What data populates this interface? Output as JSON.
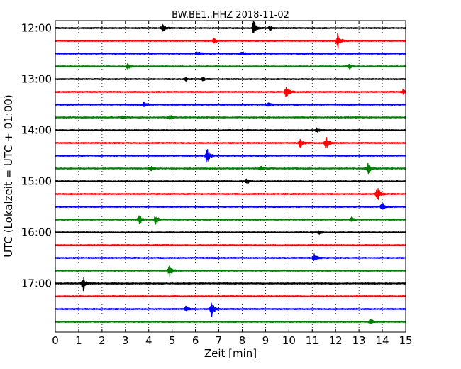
{
  "chart_data": {
    "type": "line",
    "title": "BW.BE1..HHZ 2018-11-02",
    "xlabel": "Zeit  [min]",
    "ylabel": "UTC (Lokalzeit = UTC + 01:00)",
    "xlim": [
      0,
      15
    ],
    "xticks": [
      "0",
      "1",
      "2",
      "3",
      "4",
      "5",
      "6",
      "7",
      "8",
      "9",
      "10",
      "11",
      "12",
      "13",
      "14",
      "15"
    ],
    "yticks": [
      "12:00",
      "13:00",
      "14:00",
      "15:00",
      "16:00",
      "17:00"
    ],
    "grid": "vertical dotted",
    "trace_colors": [
      "#000000",
      "#ff0000",
      "#0000ff",
      "#008000"
    ],
    "traces": [
      {
        "start": "12:00",
        "color": "#000000",
        "events": [
          {
            "t": 4.6,
            "amp": 0.55
          },
          {
            "t": 8.5,
            "amp": 1.0
          },
          {
            "t": 9.2,
            "amp": 0.3
          }
        ]
      },
      {
        "start": "12:15",
        "color": "#ff0000",
        "events": [
          {
            "t": 6.8,
            "amp": 0.3
          },
          {
            "t": 12.1,
            "amp": 1.0
          }
        ]
      },
      {
        "start": "12:30",
        "color": "#0000ff",
        "events": [
          {
            "t": 6.1,
            "amp": 0.3
          },
          {
            "t": 8.0,
            "amp": 0.25
          }
        ]
      },
      {
        "start": "12:45",
        "color": "#008000",
        "events": [
          {
            "t": 3.1,
            "amp": 0.35
          },
          {
            "t": 12.6,
            "amp": 0.3
          }
        ]
      },
      {
        "start": "13:00",
        "color": "#000000",
        "events": [
          {
            "t": 5.6,
            "amp": 0.2
          },
          {
            "t": 6.3,
            "amp": 0.25
          }
        ]
      },
      {
        "start": "13:15",
        "color": "#ff0000",
        "events": [
          {
            "t": 9.9,
            "amp": 1.0
          },
          {
            "t": 14.9,
            "amp": 0.35
          }
        ]
      },
      {
        "start": "13:30",
        "color": "#0000ff",
        "events": [
          {
            "t": 3.8,
            "amp": 0.3
          },
          {
            "t": 9.1,
            "amp": 0.25
          }
        ]
      },
      {
        "start": "13:45",
        "color": "#008000",
        "events": [
          {
            "t": 2.9,
            "amp": 0.2
          },
          {
            "t": 4.9,
            "amp": 0.4
          }
        ]
      },
      {
        "start": "14:00",
        "color": "#000000",
        "events": [
          {
            "t": 11.2,
            "amp": 0.3
          }
        ]
      },
      {
        "start": "14:15",
        "color": "#ff0000",
        "events": [
          {
            "t": 10.5,
            "amp": 0.65
          },
          {
            "t": 11.6,
            "amp": 1.0
          }
        ]
      },
      {
        "start": "14:30",
        "color": "#0000ff",
        "events": [
          {
            "t": 6.5,
            "amp": 1.0
          }
        ]
      },
      {
        "start": "14:45",
        "color": "#008000",
        "events": [
          {
            "t": 4.1,
            "amp": 0.3
          },
          {
            "t": 8.8,
            "amp": 0.3
          },
          {
            "t": 13.4,
            "amp": 0.75
          }
        ]
      },
      {
        "start": "15:00",
        "color": "#000000",
        "events": [
          {
            "t": 8.2,
            "amp": 0.35
          }
        ]
      },
      {
        "start": "15:15",
        "color": "#ff0000",
        "events": [
          {
            "t": 13.8,
            "amp": 1.0
          }
        ]
      },
      {
        "start": "15:30",
        "color": "#0000ff",
        "events": [
          {
            "t": 14.0,
            "amp": 0.6
          }
        ]
      },
      {
        "start": "15:45",
        "color": "#008000",
        "events": [
          {
            "t": 3.6,
            "amp": 0.7
          },
          {
            "t": 4.3,
            "amp": 0.6
          },
          {
            "t": 12.7,
            "amp": 0.3
          }
        ]
      },
      {
        "start": "16:00",
        "color": "#000000",
        "events": [
          {
            "t": 11.3,
            "amp": 0.25
          }
        ]
      },
      {
        "start": "16:15",
        "color": "#ff0000",
        "events": []
      },
      {
        "start": "16:30",
        "color": "#0000ff",
        "events": [
          {
            "t": 11.1,
            "amp": 0.55
          }
        ]
      },
      {
        "start": "16:45",
        "color": "#008000",
        "events": [
          {
            "t": 4.9,
            "amp": 0.8
          }
        ]
      },
      {
        "start": "17:00",
        "color": "#000000",
        "events": [
          {
            "t": 1.2,
            "amp": 1.0
          }
        ]
      },
      {
        "start": "17:15",
        "color": "#ff0000",
        "events": []
      },
      {
        "start": "17:30",
        "color": "#0000ff",
        "events": [
          {
            "t": 5.6,
            "amp": 0.4
          },
          {
            "t": 6.7,
            "amp": 1.0
          }
        ]
      },
      {
        "start": "17:45",
        "color": "#008000",
        "events": [
          {
            "t": 13.5,
            "amp": 0.4
          }
        ]
      }
    ]
  }
}
